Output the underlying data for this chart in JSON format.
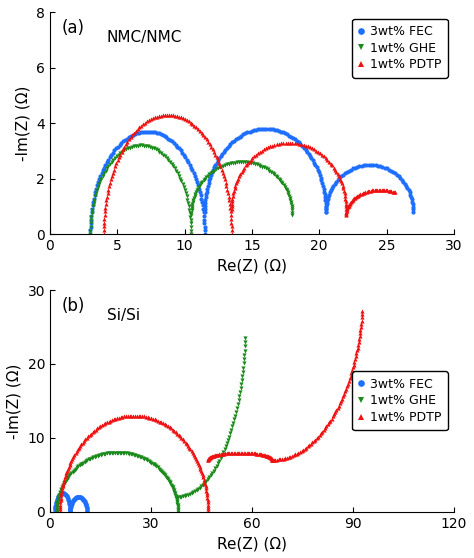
{
  "panel_a": {
    "title": "NMC/NMC",
    "xlabel": "Re(Z) (Ω)",
    "ylabel": "-Im(Z) (Ω)",
    "xlim": [
      0,
      30
    ],
    "ylim": [
      0,
      8
    ],
    "xticks": [
      0,
      5,
      10,
      15,
      20,
      25,
      30
    ],
    "yticks": [
      0,
      2,
      4,
      6,
      8
    ],
    "label": "(a)",
    "series": {
      "FEC": {
        "color": "#1E6FFF",
        "marker": "o",
        "label": "3wt% FEC"
      },
      "GHE": {
        "color": "#1A8A1A",
        "marker": "v",
        "label": "1wt% GHE"
      },
      "PDTP": {
        "color": "#EE1111",
        "marker": "^",
        "label": "1wt% PDTP"
      }
    }
  },
  "panel_b": {
    "title": "Si/Si",
    "xlabel": "Re(Z) (Ω)",
    "ylabel": "-Im(Z) (Ω)",
    "xlim": [
      0,
      120
    ],
    "ylim": [
      0,
      30
    ],
    "xticks": [
      0,
      30,
      60,
      90,
      120
    ],
    "yticks": [
      0,
      10,
      20,
      30
    ],
    "label": "(b)",
    "series": {
      "FEC": {
        "color": "#1E6FFF",
        "marker": "o",
        "label": "3wt% FEC"
      },
      "GHE": {
        "color": "#1A8A1A",
        "marker": "v",
        "label": "1wt% GHE"
      },
      "PDTP": {
        "color": "#EE1111",
        "marker": "^",
        "label": "1wt% PDTP"
      }
    }
  }
}
